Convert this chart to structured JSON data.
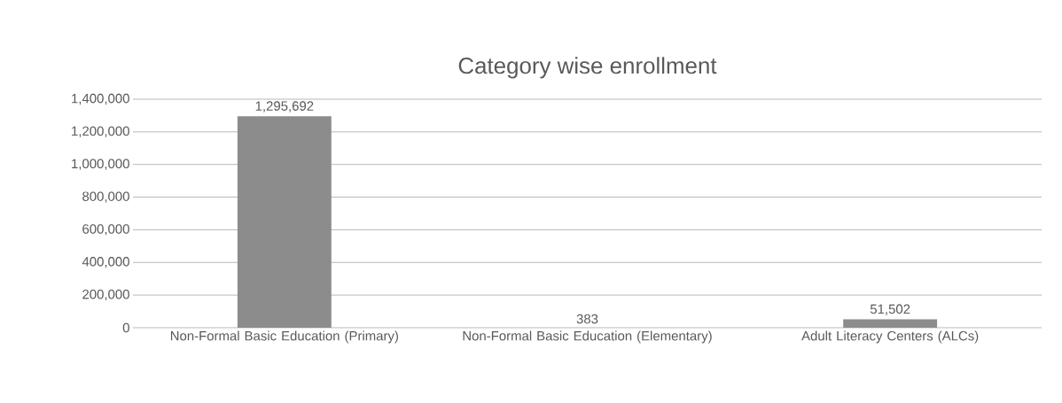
{
  "chart_data": {
    "type": "bar",
    "title": "Category wise enrollment",
    "categories": [
      "Non-Formal Basic Education (Primary)",
      "Non-Formal Basic Education (Elementary)",
      "Adult Literacy Centers (ALCs)"
    ],
    "values": [
      1295692,
      383,
      51502
    ],
    "value_labels": [
      "1,295,692",
      "383",
      "51,502"
    ],
    "color": "#8c8c8c",
    "ylim": [
      0,
      1400000
    ],
    "yticks": [
      0,
      {
        "value": 200000,
        "label": "200,000"
      },
      {
        "value": 400000,
        "label": "400,000"
      },
      {
        "value": 600000,
        "label": "600,000"
      },
      {
        "value": 800000,
        "label": "800,000"
      },
      {
        "value": 1000000,
        "label": "1,000,000"
      },
      {
        "value": 1200000,
        "label": "1,200,000"
      },
      {
        "value": 1400000,
        "label": "1,400,000"
      }
    ],
    "grid": "y"
  }
}
